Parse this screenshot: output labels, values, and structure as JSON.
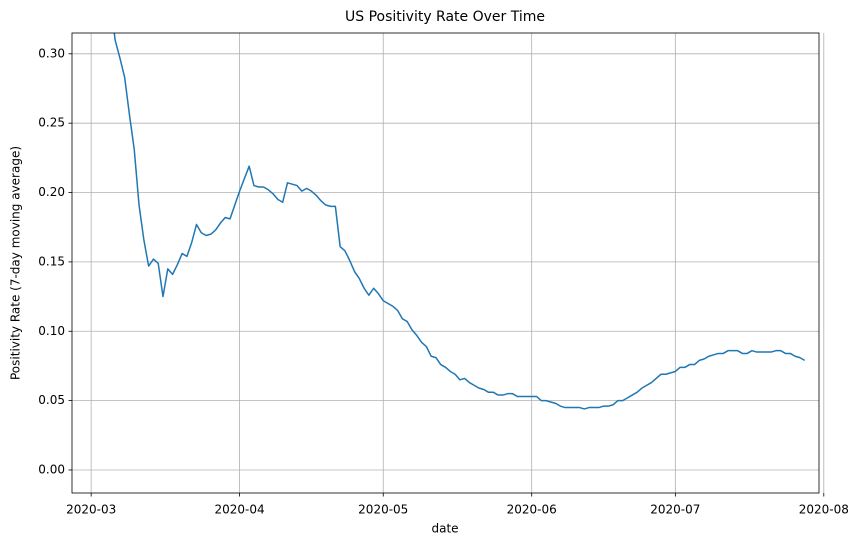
{
  "chart_data": {
    "type": "line",
    "title": "US Positivity Rate Over Time",
    "x_label": "date",
    "y_label": "Positivity Rate (7-day moving average)",
    "color": "#1f77b4",
    "grid": true,
    "xlim": [
      "2020-02-26",
      "2020-07-31"
    ],
    "xticks": [
      {
        "value": "2020-03-01",
        "label": "2020-03"
      },
      {
        "value": "2020-04-01",
        "label": "2020-04"
      },
      {
        "value": "2020-05-01",
        "label": "2020-05"
      },
      {
        "value": "2020-06-01",
        "label": "2020-06"
      },
      {
        "value": "2020-07-01",
        "label": "2020-07"
      },
      {
        "value": "2020-08-01",
        "label": "2020-08"
      }
    ],
    "ylim": [
      -0.0166,
      0.315
    ],
    "yticks": [
      {
        "value": 0,
        "label": "0.00"
      },
      0.05,
      {
        "value": 0.1,
        "label": "0.10"
      },
      0.15,
      {
        "value": 0.2,
        "label": "0.20"
      },
      0.25,
      {
        "value": 0.3,
        "label": "0.30"
      }
    ],
    "x": [
      "2020-03-05",
      "2020-03-06",
      "2020-03-07",
      "2020-03-08",
      "2020-03-09",
      "2020-03-10",
      "2020-03-11",
      "2020-03-12",
      "2020-03-13",
      "2020-03-14",
      "2020-03-15",
      "2020-03-16",
      "2020-03-17",
      "2020-03-18",
      "2020-03-19",
      "2020-03-20",
      "2020-03-21",
      "2020-03-22",
      "2020-03-23",
      "2020-03-24",
      "2020-03-25",
      "2020-03-26",
      "2020-03-27",
      "2020-03-28",
      "2020-03-29",
      "2020-03-30",
      "2020-03-31",
      "2020-04-01",
      "2020-04-02",
      "2020-04-03",
      "2020-04-04",
      "2020-04-05",
      "2020-04-06",
      "2020-04-07",
      "2020-04-08",
      "2020-04-09",
      "2020-04-10",
      "2020-04-11",
      "2020-04-12",
      "2020-04-13",
      "2020-04-14",
      "2020-04-15",
      "2020-04-16",
      "2020-04-17",
      "2020-04-18",
      "2020-04-19",
      "2020-04-20",
      "2020-04-21",
      "2020-04-22",
      "2020-04-23",
      "2020-04-24",
      "2020-04-25",
      "2020-04-26",
      "2020-04-27",
      "2020-04-28",
      "2020-04-29",
      "2020-04-30",
      "2020-05-01",
      "2020-05-02",
      "2020-05-03",
      "2020-05-04",
      "2020-05-05",
      "2020-05-06",
      "2020-05-07",
      "2020-05-08",
      "2020-05-09",
      "2020-05-10",
      "2020-05-11",
      "2020-05-12",
      "2020-05-13",
      "2020-05-14",
      "2020-05-15",
      "2020-05-16",
      "2020-05-17",
      "2020-05-18",
      "2020-05-19",
      "2020-05-20",
      "2020-05-21",
      "2020-05-22",
      "2020-05-23",
      "2020-05-24",
      "2020-05-25",
      "2020-05-26",
      "2020-05-27",
      "2020-05-28",
      "2020-05-29",
      "2020-05-30",
      "2020-05-31",
      "2020-06-01",
      "2020-06-02",
      "2020-06-03",
      "2020-06-04",
      "2020-06-05",
      "2020-06-06",
      "2020-06-07",
      "2020-06-08",
      "2020-06-09",
      "2020-06-10",
      "2020-06-11",
      "2020-06-12",
      "2020-06-13",
      "2020-06-14",
      "2020-06-15",
      "2020-06-16",
      "2020-06-17",
      "2020-06-18",
      "2020-06-19",
      "2020-06-20",
      "2020-06-21",
      "2020-06-22",
      "2020-06-23",
      "2020-06-24",
      "2020-06-25",
      "2020-06-26",
      "2020-06-27",
      "2020-06-28",
      "2020-06-29",
      "2020-06-30",
      "2020-07-01",
      "2020-07-02",
      "2020-07-03",
      "2020-07-04",
      "2020-07-05",
      "2020-07-06",
      "2020-07-07",
      "2020-07-08",
      "2020-07-09",
      "2020-07-10",
      "2020-07-11",
      "2020-07-12",
      "2020-07-13",
      "2020-07-14",
      "2020-07-15",
      "2020-07-16",
      "2020-07-17",
      "2020-07-18",
      "2020-07-19",
      "2020-07-20",
      "2020-07-21",
      "2020-07-22",
      "2020-07-23",
      "2020-07-24",
      "2020-07-25",
      "2020-07-26",
      "2020-07-27",
      "2020-07-28"
    ],
    "values": [
      0.34,
      0.31,
      0.297,
      0.283,
      0.256,
      0.231,
      0.191,
      0.166,
      0.147,
      0.152,
      0.149,
      0.125,
      0.145,
      0.141,
      0.148,
      0.156,
      0.154,
      0.164,
      0.177,
      0.171,
      0.169,
      0.17,
      0.173,
      0.178,
      0.182,
      0.181,
      0.191,
      0.201,
      0.21,
      0.219,
      0.205,
      0.204,
      0.204,
      0.202,
      0.199,
      0.195,
      0.193,
      0.207,
      0.206,
      0.205,
      0.201,
      0.203,
      0.201,
      0.198,
      0.194,
      0.191,
      0.19,
      0.19,
      0.161,
      0.158,
      0.151,
      0.143,
      0.138,
      0.131,
      0.126,
      0.131,
      0.127,
      0.122,
      0.12,
      0.118,
      0.115,
      0.109,
      0.107,
      0.101,
      0.097,
      0.092,
      0.089,
      0.082,
      0.081,
      0.076,
      0.074,
      0.071,
      0.069,
      0.065,
      0.066,
      0.063,
      0.061,
      0.059,
      0.058,
      0.056,
      0.056,
      0.054,
      0.054,
      0.055,
      0.055,
      0.053,
      0.053,
      0.053,
      0.053,
      0.053,
      0.05,
      0.05,
      0.049,
      0.048,
      0.046,
      0.045,
      0.045,
      0.045,
      0.045,
      0.044,
      0.045,
      0.045,
      0.045,
      0.046,
      0.046,
      0.047,
      0.05,
      0.05,
      0.052,
      0.054,
      0.056,
      0.059,
      0.061,
      0.063,
      0.066,
      0.069,
      0.069,
      0.07,
      0.071,
      0.074,
      0.074,
      0.076,
      0.076,
      0.079,
      0.08,
      0.082,
      0.083,
      0.084,
      0.084,
      0.086,
      0.086,
      0.086,
      0.084,
      0.084,
      0.086,
      0.085,
      0.085,
      0.085,
      0.085,
      0.086,
      0.086,
      0.084,
      0.084,
      0.082,
      0.081,
      0.079
    ]
  }
}
